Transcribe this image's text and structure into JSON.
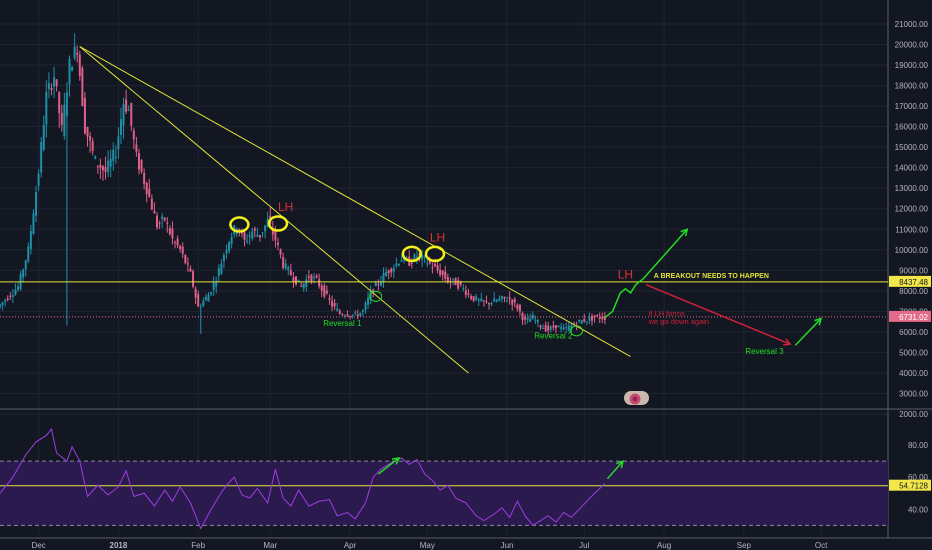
{
  "colors": {
    "background": "#131722",
    "grid": "#1f2433",
    "candle_up": "#1e90a8",
    "candle_down": "#e0608a",
    "trendline": "#e4e435",
    "circle": "#f2f21a",
    "lh": "#e03030",
    "reversal": "#22dd22",
    "arrow_up": "#22dd22",
    "arrow_down": "#d0203a",
    "rsi_line": "#a03ce0",
    "rsi_band": "#2a1a4e",
    "price_tag_horizontal": "#f2e84a",
    "price_tag_current": "#e26b8a",
    "rsi_tag": "#f2e84a",
    "axis_text": "#b2b5be"
  },
  "chart_data": [
    {
      "type": "candlestick",
      "title": "",
      "ylim": [
        1000,
        21500
      ],
      "y_ticks": [
        "21000.00",
        "20000.00",
        "19000.00",
        "18000.00",
        "17000.00",
        "16000.00",
        "15000.00",
        "14000.00",
        "13000.00",
        "12000.00",
        "11000.00",
        "10000.00",
        "9000.00",
        "8000.00",
        "7000.00",
        "6000.00",
        "5000.00",
        "4000.00",
        "3000.00",
        "2000.00"
      ],
      "x_ticks": [
        "Dec",
        "2018",
        "Feb",
        "Mar",
        "Apr",
        "May",
        "Jun",
        "Jul",
        "Aug",
        "Sep",
        "Oct"
      ],
      "x_tick_days": [
        15,
        46,
        77,
        105,
        136,
        166,
        197,
        227,
        258,
        289,
        319
      ],
      "x_range_days": [
        0,
        345
      ],
      "price_path": [
        [
          0,
          7200
        ],
        [
          8,
          8200
        ],
        [
          12,
          10000
        ],
        [
          16,
          13800
        ],
        [
          19,
          17500
        ],
        [
          22,
          18500
        ],
        [
          25,
          15800
        ],
        [
          28,
          19000
        ],
        [
          31,
          19900
        ],
        [
          34,
          16000
        ],
        [
          38,
          14300
        ],
        [
          42,
          13800
        ],
        [
          46,
          14800
        ],
        [
          49,
          17200
        ],
        [
          51,
          16800
        ],
        [
          54,
          14500
        ],
        [
          58,
          13000
        ],
        [
          62,
          11200
        ],
        [
          65,
          11500
        ],
        [
          68,
          10500
        ],
        [
          71,
          10000
        ],
        [
          75,
          8800
        ],
        [
          78,
          7200
        ],
        [
          82,
          7800
        ],
        [
          85,
          8600
        ],
        [
          88,
          9800
        ],
        [
          90,
          10500
        ],
        [
          93,
          11200
        ],
        [
          96,
          10400
        ],
        [
          99,
          10900
        ],
        [
          102,
          10700
        ],
        [
          105,
          11400
        ],
        [
          108,
          10500
        ],
        [
          111,
          9300
        ],
        [
          114,
          8800
        ],
        [
          118,
          8200
        ],
        [
          121,
          8700
        ],
        [
          124,
          8500
        ],
        [
          127,
          7900
        ],
        [
          130,
          7300
        ],
        [
          133,
          6900
        ],
        [
          136,
          6900
        ],
        [
          139,
          6800
        ],
        [
          142,
          7000
        ],
        [
          145,
          7900
        ],
        [
          148,
          8400
        ],
        [
          151,
          8900
        ],
        [
          154,
          9200
        ],
        [
          157,
          9600
        ],
        [
          160,
          9400
        ],
        [
          163,
          9700
        ],
        [
          166,
          9500
        ],
        [
          169,
          9200
        ],
        [
          172,
          8900
        ],
        [
          175,
          8500
        ],
        [
          178,
          8400
        ],
        [
          181,
          8100
        ],
        [
          184,
          7700
        ],
        [
          187,
          7500
        ],
        [
          190,
          7400
        ],
        [
          193,
          7500
        ],
        [
          196,
          7600
        ],
        [
          199,
          7600
        ],
        [
          202,
          7200
        ],
        [
          205,
          6500
        ],
        [
          208,
          6700
        ],
        [
          211,
          6300
        ],
        [
          214,
          6100
        ],
        [
          217,
          6300
        ],
        [
          220,
          6100
        ],
        [
          223,
          6300
        ],
        [
          226,
          6500
        ],
        [
          229,
          6600
        ],
        [
          232,
          6700
        ],
        [
          235,
          6700
        ]
      ],
      "horizontal_line": {
        "value": 8437.48,
        "label": "8437.48"
      },
      "current_price": {
        "value": 6731.02,
        "label": "6731.02"
      },
      "trendlines": [
        {
          "from": [
            31,
            19900
          ],
          "to": [
            182,
            4000
          ]
        },
        {
          "from": [
            31,
            19900
          ],
          "to": [
            245,
            4800
          ]
        }
      ],
      "projection": [
        [
          235,
          6700
        ],
        [
          238,
          7000
        ],
        [
          241,
          7900
        ],
        [
          243,
          8100
        ],
        [
          245,
          7900
        ],
        [
          247,
          8300
        ],
        [
          250,
          8600
        ]
      ],
      "annotations": [
        {
          "text": "LH",
          "day": 108,
          "price": 11900
        },
        {
          "text": "LH",
          "day": 167,
          "price": 10400
        },
        {
          "text": "LH",
          "day": 240,
          "price": 8600
        },
        {
          "text": "A BREAKOUT NEEDS TO HAPPEN",
          "day": 254,
          "price": 8630
        },
        {
          "text": "if LH forms",
          "day": 252,
          "price": 6780
        },
        {
          "text": "we go down again",
          "day": 252,
          "price": 6380
        },
        {
          "text": "Reversal 1",
          "day": 133,
          "price": 6290
        },
        {
          "text": "Reversal 2",
          "day": 215,
          "price": 5670
        },
        {
          "text": "Reversal 3",
          "day": 297,
          "price": 4920
        }
      ],
      "circles": [
        {
          "day": 93,
          "price": 11230
        },
        {
          "day": 108,
          "price": 11280
        },
        {
          "day": 160,
          "price": 9800
        },
        {
          "day": 169,
          "price": 9800
        }
      ],
      "green_circles": [
        {
          "day": 146,
          "price": 7730
        },
        {
          "day": 224,
          "price": 6050
        }
      ],
      "arrows": [
        {
          "from": [
            250,
            8600
          ],
          "to": [
            267,
            11000
          ],
          "color": "up"
        },
        {
          "from": [
            251,
            8300
          ],
          "to": [
            307,
            5400
          ],
          "color": "down"
        },
        {
          "from": [
            309,
            5350
          ],
          "to": [
            319,
            6650
          ],
          "color": "up"
        }
      ]
    },
    {
      "type": "line",
      "title": "",
      "ylim": [
        24,
        100
      ],
      "y_ticks": [
        "80.00",
        "60.00",
        "40.00"
      ],
      "band": [
        30,
        70
      ],
      "reference_line": {
        "value": 54.7128,
        "label": "54.7128"
      },
      "series": [
        {
          "values": [
            [
              0,
              50
            ],
            [
              5,
              60
            ],
            [
              10,
              74
            ],
            [
              14,
              82
            ],
            [
              18,
              86
            ],
            [
              20,
              90
            ],
            [
              22,
              75
            ],
            [
              26,
              70
            ],
            [
              28,
              79
            ],
            [
              31,
              70
            ],
            [
              34,
              48
            ],
            [
              38,
              55
            ],
            [
              42,
              49
            ],
            [
              46,
              54
            ],
            [
              49,
              64
            ],
            [
              52,
              48
            ],
            [
              56,
              50
            ],
            [
              60,
              42
            ],
            [
              64,
              52
            ],
            [
              67,
              45
            ],
            [
              70,
              54
            ],
            [
              74,
              44
            ],
            [
              78,
              28
            ],
            [
              81,
              37
            ],
            [
              85,
              48
            ],
            [
              88,
              55
            ],
            [
              91,
              60
            ],
            [
              94,
              49
            ],
            [
              97,
              47
            ],
            [
              100,
              53
            ],
            [
              104,
              44
            ],
            [
              107,
              65
            ],
            [
              110,
              47
            ],
            [
              113,
              42
            ],
            [
              116,
              52
            ],
            [
              120,
              42
            ],
            [
              124,
              45
            ],
            [
              128,
              46
            ],
            [
              131,
              36
            ],
            [
              135,
              38
            ],
            [
              138,
              34
            ],
            [
              142,
              44
            ],
            [
              145,
              60
            ],
            [
              148,
              65
            ],
            [
              152,
              69
            ],
            [
              156,
              72
            ],
            [
              159,
              68
            ],
            [
              162,
              71
            ],
            [
              165,
              62
            ],
            [
              168,
              58
            ],
            [
              171,
              52
            ],
            [
              174,
              55
            ],
            [
              177,
              47
            ],
            [
              181,
              44
            ],
            [
              185,
              36
            ],
            [
              188,
              33
            ],
            [
              192,
              37
            ],
            [
              195,
              41
            ],
            [
              198,
              35
            ],
            [
              201,
              45
            ],
            [
              204,
              36
            ],
            [
              207,
              30
            ],
            [
              210,
              33
            ],
            [
              213,
              36
            ],
            [
              216,
              32
            ],
            [
              219,
              38
            ],
            [
              222,
              35
            ],
            [
              225,
              40
            ],
            [
              228,
              45
            ],
            [
              231,
              50
            ],
            [
              235,
              56
            ]
          ]
        },
        {
          "values": [
            [
              236,
              59
            ],
            [
              242,
              70
            ]
          ]
        }
      ]
    }
  ]
}
